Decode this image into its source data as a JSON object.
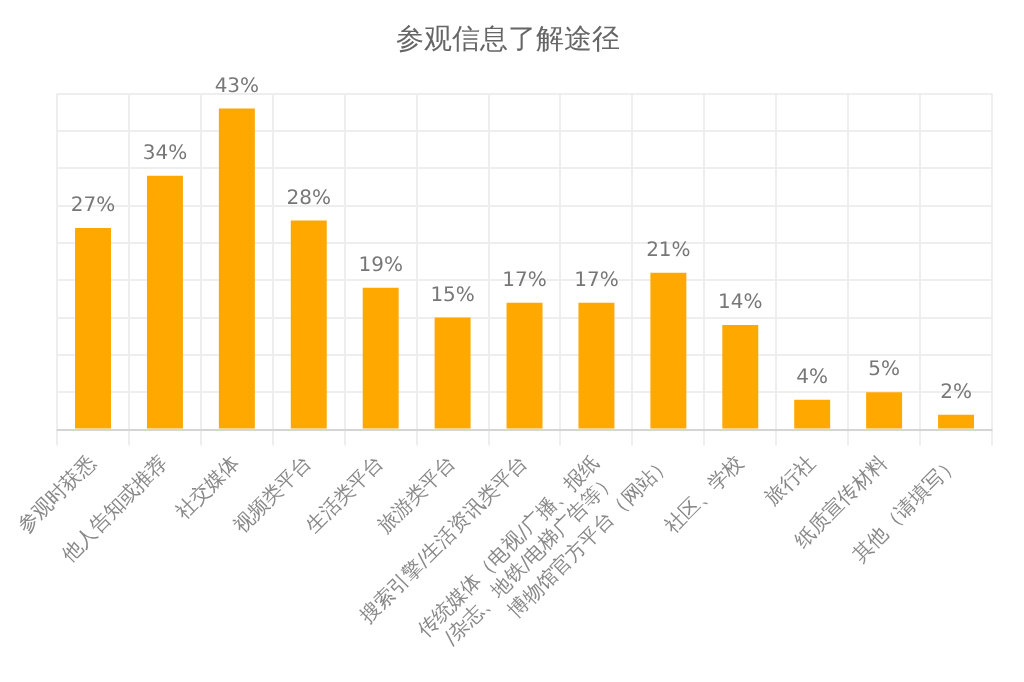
{
  "chart_data": {
    "type": "bar",
    "title": "参观信息了解途径",
    "categories": [
      "参观时获悉",
      "他人告知或推荐",
      "社交媒体",
      "视频类平台",
      "生活类平台",
      "旅游类平台",
      "搜索引擎/生活资讯类平台",
      "传统媒体（电视/广播、报纸/杂志、地铁/电梯广告等）",
      "博物馆官方平台（网站）",
      "社区、学校",
      "旅行社",
      "纸质宣传材料",
      "其他（请填写）"
    ],
    "values": [
      27,
      34,
      43,
      28,
      19,
      15,
      17,
      17,
      21,
      14,
      4,
      5,
      2
    ],
    "value_labels": [
      "27%",
      "34%",
      "43%",
      "28%",
      "19%",
      "15%",
      "17%",
      "17%",
      "21%",
      "14%",
      "4%",
      "5%",
      "2%"
    ],
    "color": "#ffa800",
    "grid": true,
    "tick_labels": "x"
  }
}
